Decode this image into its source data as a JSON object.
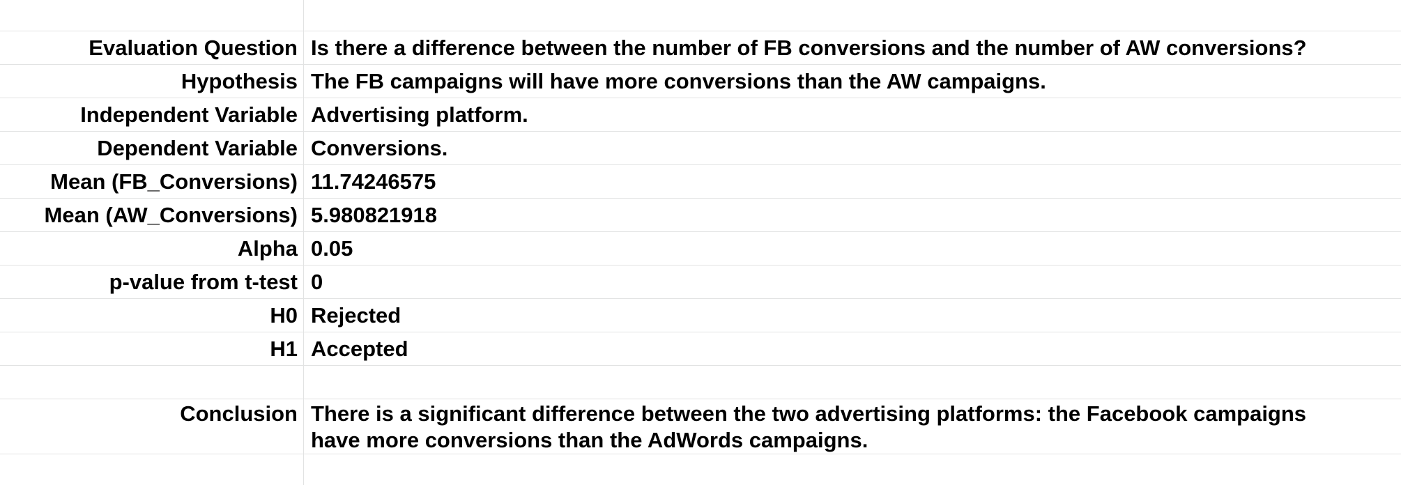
{
  "sheet": {
    "rows": [
      {
        "label": "Evaluation Question",
        "value": "Is there a difference between the number of FB conversions and the number of AW conversions?"
      },
      {
        "label": "Hypothesis",
        "value": "The FB campaigns will have more conversions than the AW campaigns."
      },
      {
        "label": "Independent Variable",
        "value": "Advertising platform."
      },
      {
        "label": "Dependent Variable",
        "value": "Conversions."
      },
      {
        "label": "Mean (FB_Conversions)",
        "value": "11.74246575"
      },
      {
        "label": "Mean (AW_Conversions)",
        "value": "5.980821918"
      },
      {
        "label": "Alpha",
        "value": "0.05"
      },
      {
        "label": "p-value from t-test",
        "value": "0"
      },
      {
        "label": "H0",
        "value": "Rejected"
      },
      {
        "label": "H1",
        "value": "Accepted"
      },
      {
        "label": "",
        "value": ""
      },
      {
        "label": "Conclusion",
        "value": "There is a significant difference between the two advertising platforms: the Facebook campaigns have more conversions than the AdWords campaigns."
      }
    ]
  }
}
